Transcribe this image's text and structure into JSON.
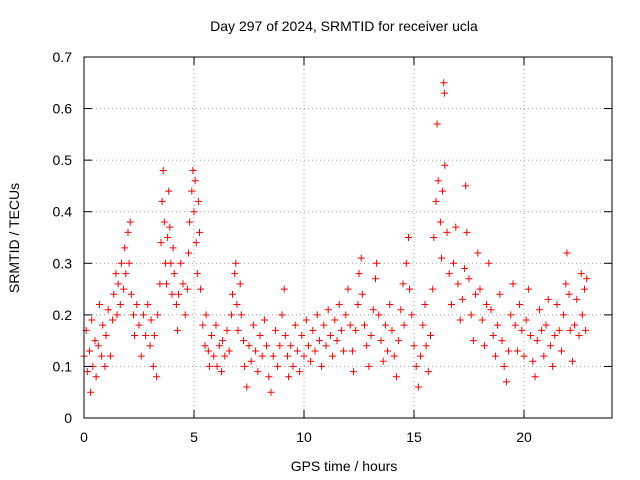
{
  "chart_data": {
    "type": "scatter",
    "title": "Day 297 of 2024, SRMTID for receiver ucla",
    "xlabel": "GPS time / hours",
    "ylabel": "SRMTID / TECUs",
    "xlim": [
      0,
      24
    ],
    "ylim": [
      0,
      0.7
    ],
    "xticks": [
      0,
      5,
      10,
      15,
      20
    ],
    "xtick_labels": [
      "0",
      "5",
      "10",
      "15",
      "20"
    ],
    "yticks": [
      0,
      0.1,
      0.2,
      0.3,
      0.4,
      0.5,
      0.6,
      0.7
    ],
    "ytick_labels": [
      "0",
      "0.1",
      "0.2",
      "0.3",
      "0.4",
      "0.5",
      "0.6",
      "0.7"
    ],
    "grid": true,
    "marker": "+",
    "color": "#ff0000",
    "series": [
      {
        "name": "SRMTID",
        "points": [
          [
            0.0,
            0.12
          ],
          [
            0.1,
            0.17
          ],
          [
            0.15,
            0.09
          ],
          [
            0.25,
            0.13
          ],
          [
            0.3,
            0.05
          ],
          [
            0.35,
            0.19
          ],
          [
            0.4,
            0.1
          ],
          [
            0.5,
            0.15
          ],
          [
            0.55,
            0.08
          ],
          [
            0.65,
            0.14
          ],
          [
            0.7,
            0.22
          ],
          [
            0.8,
            0.12
          ],
          [
            0.85,
            0.18
          ],
          [
            0.95,
            0.1
          ],
          [
            1.0,
            0.16
          ],
          [
            1.1,
            0.21
          ],
          [
            1.2,
            0.12
          ],
          [
            1.3,
            0.19
          ],
          [
            1.35,
            0.24
          ],
          [
            1.45,
            0.28
          ],
          [
            1.5,
            0.2
          ],
          [
            1.55,
            0.26
          ],
          [
            1.65,
            0.22
          ],
          [
            1.7,
            0.3
          ],
          [
            1.8,
            0.25
          ],
          [
            1.85,
            0.33
          ],
          [
            1.9,
            0.28
          ],
          [
            2.0,
            0.36
          ],
          [
            2.05,
            0.3
          ],
          [
            2.1,
            0.38
          ],
          [
            2.15,
            0.24
          ],
          [
            2.25,
            0.2
          ],
          [
            2.3,
            0.16
          ],
          [
            2.4,
            0.22
          ],
          [
            2.5,
            0.18
          ],
          [
            2.6,
            0.12
          ],
          [
            2.7,
            0.2
          ],
          [
            2.8,
            0.16
          ],
          [
            2.9,
            0.22
          ],
          [
            3.0,
            0.14
          ],
          [
            3.05,
            0.19
          ],
          [
            3.15,
            0.1
          ],
          [
            3.2,
            0.16
          ],
          [
            3.3,
            0.08
          ],
          [
            3.35,
            0.2
          ],
          [
            3.45,
            0.26
          ],
          [
            3.5,
            0.34
          ],
          [
            3.55,
            0.42
          ],
          [
            3.6,
            0.48
          ],
          [
            3.65,
            0.38
          ],
          [
            3.7,
            0.3
          ],
          [
            3.75,
            0.26
          ],
          [
            3.8,
            0.35
          ],
          [
            3.85,
            0.44
          ],
          [
            3.9,
            0.37
          ],
          [
            3.95,
            0.3
          ],
          [
            4.0,
            0.24
          ],
          [
            4.05,
            0.33
          ],
          [
            4.1,
            0.28
          ],
          [
            4.2,
            0.22
          ],
          [
            4.25,
            0.17
          ],
          [
            4.3,
            0.24
          ],
          [
            4.4,
            0.3
          ],
          [
            4.5,
            0.26
          ],
          [
            4.6,
            0.2
          ],
          [
            4.7,
            0.25
          ],
          [
            4.75,
            0.32
          ],
          [
            4.8,
            0.38
          ],
          [
            4.9,
            0.44
          ],
          [
            4.95,
            0.48
          ],
          [
            5.0,
            0.4
          ],
          [
            5.05,
            0.46
          ],
          [
            5.1,
            0.34
          ],
          [
            5.15,
            0.28
          ],
          [
            5.2,
            0.42
          ],
          [
            5.25,
            0.36
          ],
          [
            5.3,
            0.25
          ],
          [
            5.4,
            0.18
          ],
          [
            5.5,
            0.14
          ],
          [
            5.55,
            0.2
          ],
          [
            5.65,
            0.13
          ],
          [
            5.7,
            0.1
          ],
          [
            5.8,
            0.16
          ],
          [
            5.9,
            0.12
          ],
          [
            6.0,
            0.18
          ],
          [
            6.05,
            0.1
          ],
          [
            6.15,
            0.14
          ],
          [
            6.25,
            0.09
          ],
          [
            6.3,
            0.15
          ],
          [
            6.4,
            0.12
          ],
          [
            6.5,
            0.17
          ],
          [
            6.6,
            0.13
          ],
          [
            6.7,
            0.2
          ],
          [
            6.75,
            0.24
          ],
          [
            6.85,
            0.28
          ],
          [
            6.9,
            0.3
          ],
          [
            6.95,
            0.22
          ],
          [
            7.0,
            0.17
          ],
          [
            7.1,
            0.26
          ],
          [
            7.15,
            0.2
          ],
          [
            7.25,
            0.15
          ],
          [
            7.3,
            0.1
          ],
          [
            7.4,
            0.06
          ],
          [
            7.5,
            0.14
          ],
          [
            7.6,
            0.11
          ],
          [
            7.7,
            0.18
          ],
          [
            7.8,
            0.13
          ],
          [
            7.9,
            0.09
          ],
          [
            8.0,
            0.16
          ],
          [
            8.1,
            0.12
          ],
          [
            8.2,
            0.19
          ],
          [
            8.3,
            0.14
          ],
          [
            8.4,
            0.08
          ],
          [
            8.5,
            0.05
          ],
          [
            8.6,
            0.12
          ],
          [
            8.7,
            0.17
          ],
          [
            8.8,
            0.1
          ],
          [
            8.9,
            0.14
          ],
          [
            9.0,
            0.2
          ],
          [
            9.1,
            0.25
          ],
          [
            9.15,
            0.16
          ],
          [
            9.25,
            0.12
          ],
          [
            9.3,
            0.08
          ],
          [
            9.4,
            0.14
          ],
          [
            9.5,
            0.1
          ],
          [
            9.6,
            0.18
          ],
          [
            9.7,
            0.13
          ],
          [
            9.8,
            0.09
          ],
          [
            9.9,
            0.16
          ],
          [
            10.0,
            0.12
          ],
          [
            10.1,
            0.19
          ],
          [
            10.2,
            0.14
          ],
          [
            10.3,
            0.11
          ],
          [
            10.4,
            0.17
          ],
          [
            10.5,
            0.13
          ],
          [
            10.6,
            0.2
          ],
          [
            10.7,
            0.15
          ],
          [
            10.8,
            0.1
          ],
          [
            10.9,
            0.18
          ],
          [
            11.0,
            0.14
          ],
          [
            11.1,
            0.21
          ],
          [
            11.2,
            0.16
          ],
          [
            11.3,
            0.12
          ],
          [
            11.4,
            0.19
          ],
          [
            11.5,
            0.15
          ],
          [
            11.6,
            0.22
          ],
          [
            11.7,
            0.17
          ],
          [
            11.8,
            0.13
          ],
          [
            11.9,
            0.2
          ],
          [
            12.0,
            0.25
          ],
          [
            12.1,
            0.18
          ],
          [
            12.2,
            0.13
          ],
          [
            12.25,
            0.09
          ],
          [
            12.35,
            0.17
          ],
          [
            12.45,
            0.22
          ],
          [
            12.5,
            0.28
          ],
          [
            12.6,
            0.31
          ],
          [
            12.65,
            0.24
          ],
          [
            12.75,
            0.18
          ],
          [
            12.85,
            0.14
          ],
          [
            12.95,
            0.1
          ],
          [
            13.05,
            0.16
          ],
          [
            13.15,
            0.21
          ],
          [
            13.25,
            0.27
          ],
          [
            13.3,
            0.3
          ],
          [
            13.4,
            0.2
          ],
          [
            13.5,
            0.15
          ],
          [
            13.6,
            0.11
          ],
          [
            13.7,
            0.18
          ],
          [
            13.8,
            0.13
          ],
          [
            13.9,
            0.22
          ],
          [
            14.0,
            0.17
          ],
          [
            14.1,
            0.12
          ],
          [
            14.2,
            0.08
          ],
          [
            14.3,
            0.15
          ],
          [
            14.4,
            0.21
          ],
          [
            14.5,
            0.26
          ],
          [
            14.55,
            0.18
          ],
          [
            14.65,
            0.3
          ],
          [
            14.75,
            0.35
          ],
          [
            14.8,
            0.25
          ],
          [
            14.9,
            0.2
          ],
          [
            15.0,
            0.14
          ],
          [
            15.1,
            0.1
          ],
          [
            15.2,
            0.06
          ],
          [
            15.3,
            0.12
          ],
          [
            15.4,
            0.18
          ],
          [
            15.5,
            0.22
          ],
          [
            15.55,
            0.14
          ],
          [
            15.65,
            0.09
          ],
          [
            15.75,
            0.16
          ],
          [
            15.85,
            0.25
          ],
          [
            15.9,
            0.35
          ],
          [
            16.0,
            0.42
          ],
          [
            16.05,
            0.57
          ],
          [
            16.1,
            0.46
          ],
          [
            16.2,
            0.38
          ],
          [
            16.25,
            0.31
          ],
          [
            16.3,
            0.44
          ],
          [
            16.35,
            0.65
          ],
          [
            16.38,
            0.63
          ],
          [
            16.4,
            0.49
          ],
          [
            16.5,
            0.36
          ],
          [
            16.6,
            0.28
          ],
          [
            16.7,
            0.22
          ],
          [
            16.8,
            0.3
          ],
          [
            16.9,
            0.37
          ],
          [
            17.0,
            0.26
          ],
          [
            17.1,
            0.19
          ],
          [
            17.2,
            0.23
          ],
          [
            17.3,
            0.29
          ],
          [
            17.35,
            0.45
          ],
          [
            17.4,
            0.36
          ],
          [
            17.5,
            0.27
          ],
          [
            17.6,
            0.2
          ],
          [
            17.7,
            0.15
          ],
          [
            17.8,
            0.24
          ],
          [
            17.9,
            0.32
          ],
          [
            18.0,
            0.25
          ],
          [
            18.1,
            0.19
          ],
          [
            18.2,
            0.14
          ],
          [
            18.3,
            0.22
          ],
          [
            18.4,
            0.3
          ],
          [
            18.5,
            0.21
          ],
          [
            18.6,
            0.16
          ],
          [
            18.7,
            0.12
          ],
          [
            18.8,
            0.18
          ],
          [
            18.9,
            0.24
          ],
          [
            19.0,
            0.15
          ],
          [
            19.1,
            0.1
          ],
          [
            19.2,
            0.07
          ],
          [
            19.3,
            0.13
          ],
          [
            19.4,
            0.2
          ],
          [
            19.5,
            0.26
          ],
          [
            19.6,
            0.18
          ],
          [
            19.7,
            0.13
          ],
          [
            19.8,
            0.22
          ],
          [
            19.9,
            0.17
          ],
          [
            20.0,
            0.12
          ],
          [
            20.1,
            0.19
          ],
          [
            20.2,
            0.25
          ],
          [
            20.3,
            0.16
          ],
          [
            20.4,
            0.11
          ],
          [
            20.5,
            0.08
          ],
          [
            20.6,
            0.15
          ],
          [
            20.7,
            0.21
          ],
          [
            20.8,
            0.17
          ],
          [
            20.9,
            0.12
          ],
          [
            21.0,
            0.18
          ],
          [
            21.1,
            0.23
          ],
          [
            21.2,
            0.14
          ],
          [
            21.3,
            0.1
          ],
          [
            21.4,
            0.16
          ],
          [
            21.5,
            0.22
          ],
          [
            21.6,
            0.17
          ],
          [
            21.7,
            0.13
          ],
          [
            21.8,
            0.2
          ],
          [
            21.9,
            0.26
          ],
          [
            21.95,
            0.32
          ],
          [
            22.05,
            0.24
          ],
          [
            22.1,
            0.17
          ],
          [
            22.2,
            0.11
          ],
          [
            22.3,
            0.18
          ],
          [
            22.4,
            0.23
          ],
          [
            22.5,
            0.16
          ],
          [
            22.6,
            0.28
          ],
          [
            22.65,
            0.2
          ],
          [
            22.75,
            0.25
          ],
          [
            22.8,
            0.17
          ],
          [
            22.85,
            0.27
          ]
        ]
      }
    ]
  }
}
